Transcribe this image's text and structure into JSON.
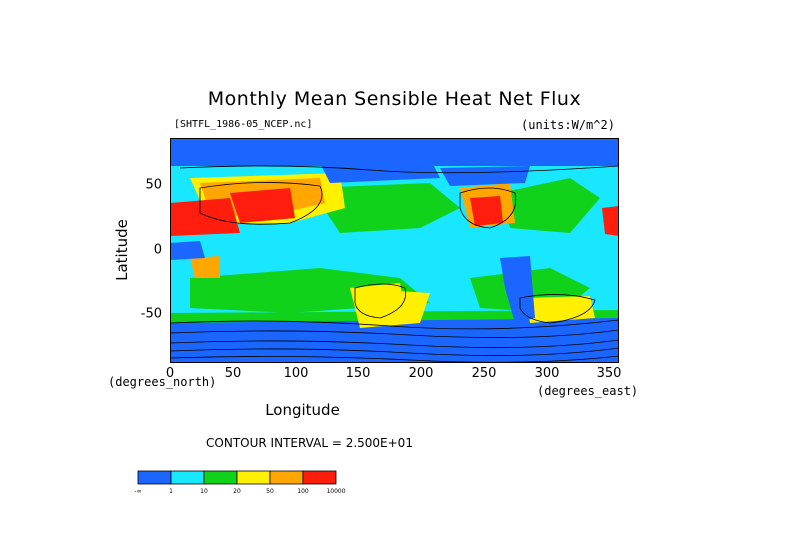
{
  "title": "Monthly Mean Sensible Heat Net Flux",
  "file_label": "[SHTFL_1986-05_NCEP.nc]",
  "units_label": "(units:W/m^2)",
  "xlabel": "Longitude",
  "ylabel": "Latitude",
  "x_unit": "(degrees_north)",
  "x_unit2": "(degrees_east)",
  "contour_interval": "CONTOUR INTERVAL = 2.500E+01",
  "chart_data": {
    "type": "heatmap",
    "title": "Monthly Mean Sensible Heat Net Flux",
    "xlabel": "Longitude",
    "ylabel": "Latitude",
    "xlim": [
      0,
      357.5
    ],
    "ylim": [
      -90,
      90
    ],
    "x_ticks": [
      "0",
      "50",
      "100",
      "150",
      "200",
      "250",
      "300",
      "350"
    ],
    "y_ticks": [
      "50",
      "0",
      "-50"
    ],
    "units": "W/m^2",
    "contour_interval": 25,
    "legend": {
      "placement": "bottom-left",
      "labels": [
        "-∞",
        "1",
        "10",
        "20",
        "50",
        "100",
        "10000"
      ],
      "colors": [
        "#1a66ff",
        "#19e6ff",
        "#11d21b",
        "#fff000",
        "#ffa600",
        "#ff1e0d"
      ]
    }
  }
}
